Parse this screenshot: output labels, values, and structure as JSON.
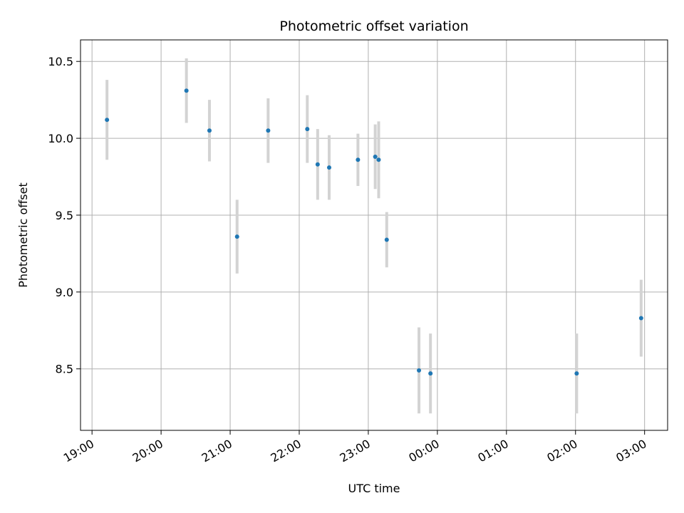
{
  "chart_data": {
    "type": "scatter",
    "title": "Photometric offset variation",
    "xlabel": "UTC time",
    "ylabel": "Photometric offset",
    "x_unit": "UTC time of day",
    "x_ticks": [
      "19:00",
      "20:00",
      "21:00",
      "22:00",
      "23:00",
      "00:00",
      "01:00",
      "02:00",
      "03:00"
    ],
    "y_ticks": [
      8.5,
      9.0,
      9.5,
      10.0,
      10.5
    ],
    "ylim": [
      8.1,
      10.64
    ],
    "xlim": [
      "18:50",
      "03:20"
    ],
    "grid": true,
    "legend": "none",
    "colors": {
      "points": "#1f77b4",
      "error_bars": "#d3d3d3"
    },
    "points": [
      {
        "x": "19:13",
        "y": 10.12,
        "yerr": 0.26
      },
      {
        "x": "20:22",
        "y": 10.31,
        "yerr": 0.21
      },
      {
        "x": "20:42",
        "y": 10.05,
        "yerr": 0.2
      },
      {
        "x": "21:06",
        "y": 9.36,
        "yerr": 0.24
      },
      {
        "x": "21:33",
        "y": 10.05,
        "yerr": 0.21
      },
      {
        "x": "22:07",
        "y": 10.06,
        "yerr": 0.22
      },
      {
        "x": "22:16",
        "y": 9.83,
        "yerr": 0.23
      },
      {
        "x": "22:26",
        "y": 9.81,
        "yerr": 0.21
      },
      {
        "x": "22:51",
        "y": 9.86,
        "yerr": 0.17
      },
      {
        "x": "23:06",
        "y": 9.88,
        "yerr": 0.21
      },
      {
        "x": "23:09",
        "y": 9.86,
        "yerr": 0.25
      },
      {
        "x": "23:16",
        "y": 9.34,
        "yerr": 0.18
      },
      {
        "x": "23:44",
        "y": 8.49,
        "yerr": 0.28
      },
      {
        "x": "23:54",
        "y": 8.47,
        "yerr": 0.26
      },
      {
        "x": "02:01",
        "y": 8.47,
        "yerr": 0.26
      },
      {
        "x": "02:57",
        "y": 8.83,
        "yerr": 0.25
      }
    ]
  }
}
